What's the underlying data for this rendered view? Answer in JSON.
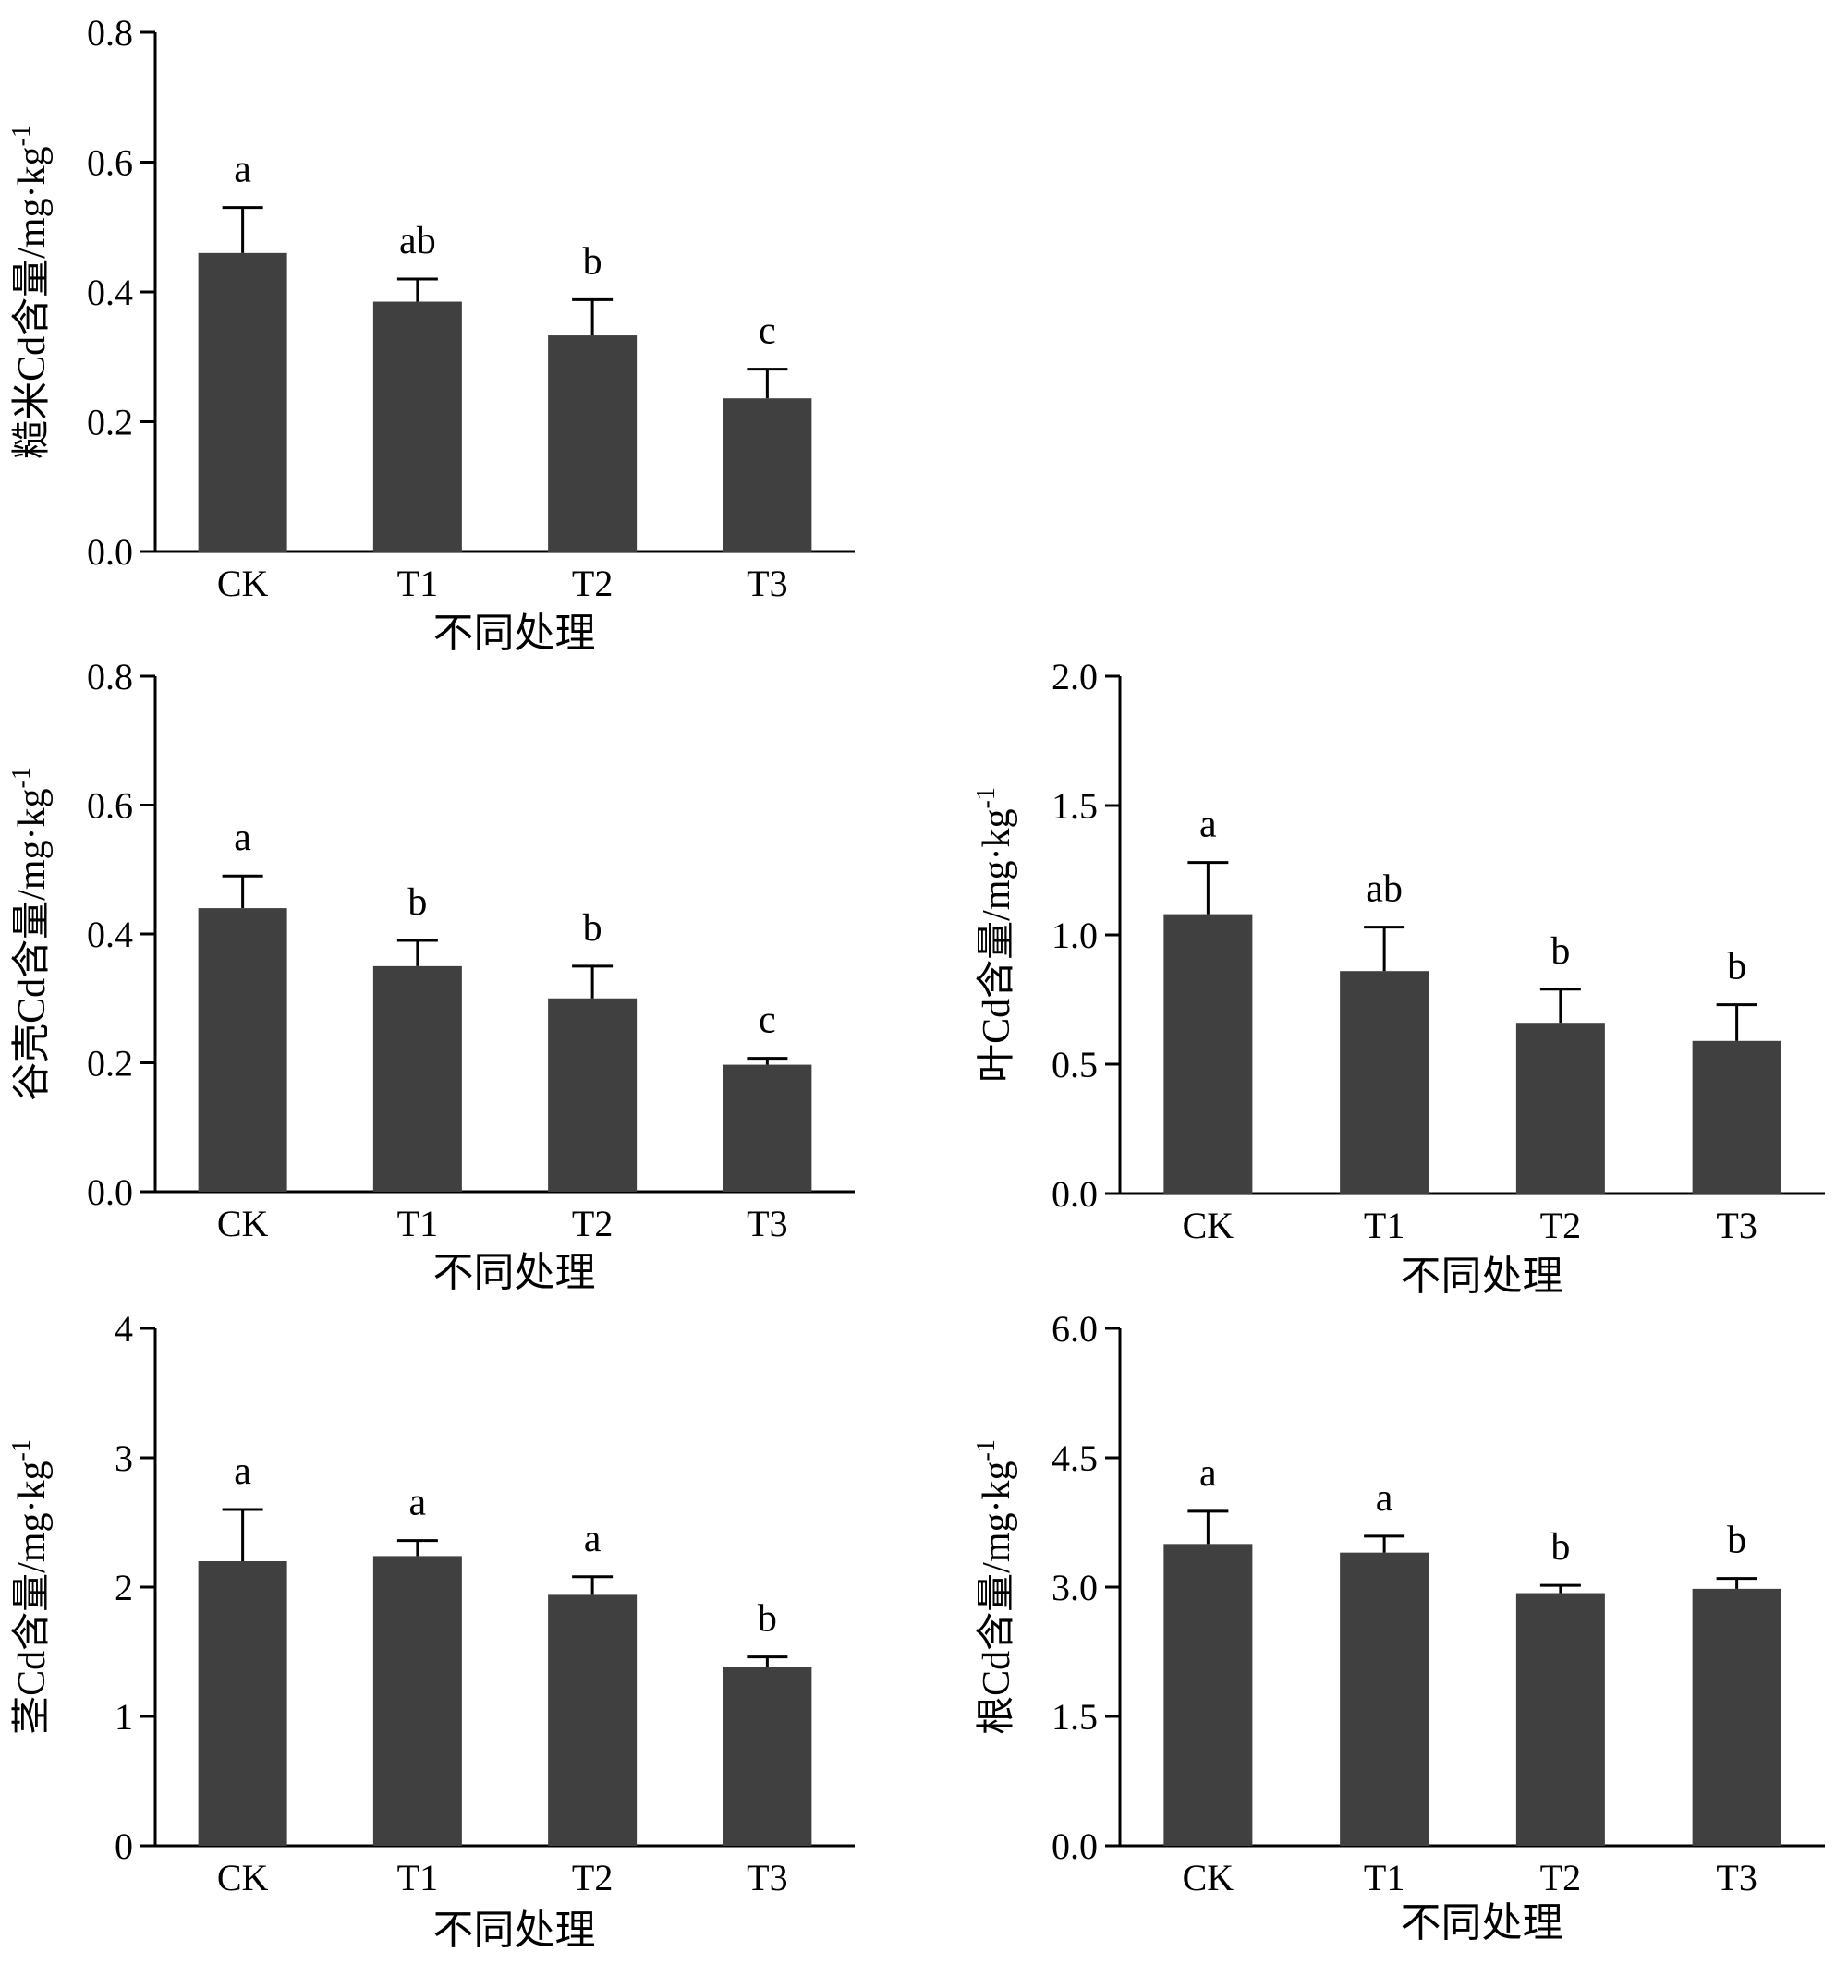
{
  "figure": {
    "bar_color": "#404040",
    "axis_color": "#000000"
  },
  "chart_data": [
    {
      "type": "bar",
      "panel": "brown-rice",
      "ylabel": "糙米Cd含量/mg·kg",
      "ylabel_sup": "-1",
      "xlabel": "不同处理",
      "categories": [
        "CK",
        "T1",
        "T2",
        "T3"
      ],
      "values": [
        0.46,
        0.385,
        0.333,
        0.236
      ],
      "errors": [
        0.07,
        0.035,
        0.055,
        0.045
      ],
      "letters": [
        "a",
        "ab",
        "b",
        "c"
      ],
      "ylim": [
        0,
        0.8
      ],
      "yticks": [
        "0.0",
        "0.2",
        "0.4",
        "0.6",
        "0.8"
      ]
    },
    {
      "type": "bar",
      "panel": "husk",
      "ylabel": "谷壳Cd含量/mg·kg",
      "ylabel_sup": "-1",
      "xlabel": "不同处理",
      "categories": [
        "CK",
        "T1",
        "T2",
        "T3"
      ],
      "values": [
        0.44,
        0.35,
        0.3,
        0.197
      ],
      "errors": [
        0.05,
        0.04,
        0.05,
        0.01
      ],
      "letters": [
        "a",
        "b",
        "b",
        "c"
      ],
      "ylim": [
        0,
        0.8
      ],
      "yticks": [
        "0.0",
        "0.2",
        "0.4",
        "0.6",
        "0.8"
      ]
    },
    {
      "type": "bar",
      "panel": "leaf",
      "ylabel": "叶Cd含量/mg·kg",
      "ylabel_sup": "-1",
      "xlabel": "不同处理",
      "categories": [
        "CK",
        "T1",
        "T2",
        "T3"
      ],
      "values": [
        1.08,
        0.86,
        0.66,
        0.59
      ],
      "errors": [
        0.2,
        0.17,
        0.13,
        0.14
      ],
      "letters": [
        "a",
        "ab",
        "b",
        "b"
      ],
      "ylim": [
        0,
        2.0
      ],
      "yticks": [
        "0.0",
        "0.5",
        "1.0",
        "1.5",
        "2.0"
      ]
    },
    {
      "type": "bar",
      "panel": "stem",
      "ylabel": "茎Cd含量/mg·kg",
      "ylabel_sup": "-1",
      "xlabel": "不同处理",
      "categories": [
        "CK",
        "T1",
        "T2",
        "T3"
      ],
      "values": [
        2.2,
        2.24,
        1.94,
        1.38
      ],
      "errors": [
        0.4,
        0.12,
        0.14,
        0.08
      ],
      "letters": [
        "a",
        "a",
        "a",
        "b"
      ],
      "ylim": [
        0,
        4
      ],
      "yticks": [
        "0",
        "1",
        "2",
        "3",
        "4"
      ]
    },
    {
      "type": "bar",
      "panel": "root",
      "ylabel": "根Cd含量/mg·kg",
      "ylabel_sup": "-1",
      "xlabel": "不同处理",
      "categories": [
        "CK",
        "T1",
        "T2",
        "T3"
      ],
      "values": [
        3.5,
        3.4,
        2.93,
        2.98
      ],
      "errors": [
        0.38,
        0.19,
        0.09,
        0.12
      ],
      "letters": [
        "a",
        "a",
        "b",
        "b"
      ],
      "ylim": [
        0,
        6.0
      ],
      "yticks": [
        "0.0",
        "1.5",
        "3.0",
        "4.5",
        "6.0"
      ]
    }
  ]
}
